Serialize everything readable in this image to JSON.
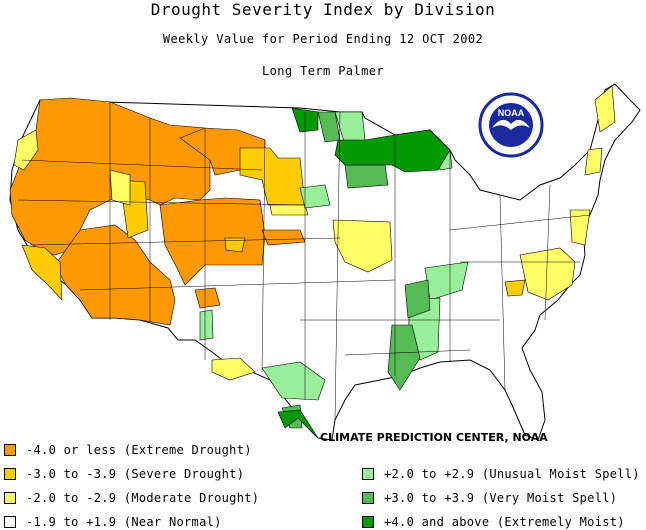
{
  "title": "Drought Severity Index by Division",
  "subtitle": "Weekly Value for Period Ending 12 OCT 2002",
  "index_name": "Long Term Palmer",
  "credit": "CLIMATE PREDICTION CENTER, NOAA",
  "logo": {
    "text": "NOAA",
    "icon": "noaa-seagull-logo"
  },
  "colors": {
    "extreme_drought": "#ff9900",
    "severe_drought": "#ffcc00",
    "moderate_drought": "#ffff66",
    "near_normal": "#ffffff",
    "unusual_moist": "#99ee99",
    "very_moist": "#55bb55",
    "extremely_moist": "#009900",
    "noaa_blue": "#1a2a9c"
  },
  "legend": {
    "left": [
      {
        "label": "-4.0 or less (Extreme Drought)",
        "color": "#ff9900"
      },
      {
        "label": "-3.0 to -3.9 (Severe Drought)",
        "color": "#ffcc00"
      },
      {
        "label": "-2.0 to -2.9 (Moderate Drought)",
        "color": "#ffff66"
      },
      {
        "label": "-1.9 to +1.9 (Near Normal)",
        "color": "#ffffff"
      }
    ],
    "right": [
      {
        "label": "+2.0 to +2.9 (Unusual Moist Spell)",
        "color": "#99ee99"
      },
      {
        "label": "+3.0 to +3.9 (Very Moist Spell)",
        "color": "#55bb55"
      },
      {
        "label": "+4.0 and above (Extremely Moist)",
        "color": "#009900"
      }
    ]
  }
}
